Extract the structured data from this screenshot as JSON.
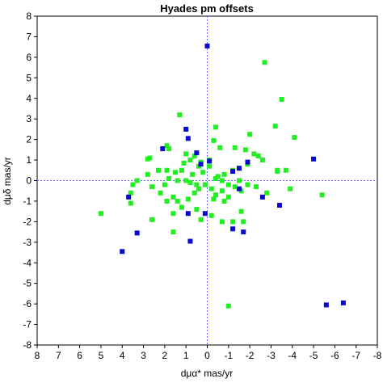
{
  "chart_data": {
    "type": "scatter",
    "title": "Hyades pm offsets",
    "xlabel": "dμα* mas/yr",
    "ylabel": "dμδ mas/yr",
    "xlim": [
      8,
      -8
    ],
    "ylim": [
      -8,
      8
    ],
    "x_reversed": true,
    "grid": false,
    "zero_lines": true,
    "x_ticks": [
      8,
      7,
      6,
      5,
      4,
      3,
      2,
      1,
      0,
      -1,
      -2,
      -3,
      -4,
      -5,
      -6,
      -7,
      -8
    ],
    "y_ticks": [
      8,
      7,
      6,
      5,
      4,
      3,
      2,
      1,
      0,
      -1,
      -2,
      -3,
      -4,
      -5,
      -6,
      -7,
      -8
    ],
    "colors": {
      "green": "#22ee22",
      "blue": "#0a0acc",
      "zero_line": "#6666ff"
    },
    "series": [
      {
        "color": "green",
        "points": [
          [
            -2.7,
            5.75
          ],
          [
            -3.5,
            3.95
          ],
          [
            1.3,
            3.2
          ],
          [
            -0.4,
            2.6
          ],
          [
            -3.2,
            2.65
          ],
          [
            -2.0,
            2.25
          ],
          [
            1.9,
            1.7
          ],
          [
            1.8,
            1.55
          ],
          [
            2.7,
            1.1
          ],
          [
            2.8,
            1.05
          ],
          [
            1.0,
            1.3
          ],
          [
            0.6,
            1.2
          ],
          [
            0.8,
            1.0
          ],
          [
            1.1,
            0.85
          ],
          [
            -0.3,
            1.95
          ],
          [
            -0.1,
            1.0
          ],
          [
            -0.6,
            1.6
          ],
          [
            -1.3,
            1.6
          ],
          [
            -1.8,
            1.5
          ],
          [
            -2.2,
            1.3
          ],
          [
            -2.4,
            1.2
          ],
          [
            -2.6,
            1.0
          ],
          [
            -3.3,
            0.45
          ],
          [
            -3.7,
            0.5
          ],
          [
            -4.1,
            2.1
          ],
          [
            -1.5,
            0.6
          ],
          [
            -1.2,
            0.5
          ],
          [
            -0.8,
            0.3
          ],
          [
            -0.5,
            0.2
          ],
          [
            0.2,
            0.4
          ],
          [
            0.4,
            0.7
          ],
          [
            0.7,
            0.3
          ],
          [
            1.2,
            0.5
          ],
          [
            1.5,
            0.4
          ],
          [
            1.9,
            0.5
          ],
          [
            2.3,
            0.5
          ],
          [
            2.8,
            0.3
          ],
          [
            3.3,
            0.0
          ],
          [
            3.5,
            -0.2
          ],
          [
            3.6,
            -0.6
          ],
          [
            2.6,
            -0.3
          ],
          [
            2.2,
            -0.6
          ],
          [
            1.9,
            -1.0
          ],
          [
            1.6,
            -0.8
          ],
          [
            1.4,
            -1.0
          ],
          [
            1.2,
            -1.3
          ],
          [
            0.9,
            -0.9
          ],
          [
            0.6,
            -0.6
          ],
          [
            0.4,
            -0.4
          ],
          [
            0.1,
            -0.2
          ],
          [
            -0.2,
            -0.4
          ],
          [
            -0.4,
            -0.7
          ],
          [
            -0.7,
            -0.5
          ],
          [
            -1.0,
            -0.8
          ],
          [
            -1.3,
            -0.3
          ],
          [
            -1.6,
            -0.5
          ],
          [
            -1.9,
            -0.2
          ],
          [
            -2.3,
            -0.3
          ],
          [
            -2.8,
            -0.6
          ],
          [
            -3.9,
            -0.4
          ],
          [
            -5.4,
            -0.7
          ],
          [
            5.0,
            -1.6
          ],
          [
            3.6,
            -1.1
          ],
          [
            2.6,
            -1.9
          ],
          [
            1.6,
            -1.6
          ],
          [
            1.6,
            -2.5
          ],
          [
            0.5,
            -1.4
          ],
          [
            0.3,
            -1.9
          ],
          [
            -0.2,
            -1.7
          ],
          [
            -0.7,
            -2.0
          ],
          [
            -1.2,
            -2.0
          ],
          [
            -1.6,
            -1.5
          ],
          [
            -1.7,
            -2.0
          ],
          [
            -0.3,
            -0.9
          ],
          [
            -0.8,
            -1.0
          ],
          [
            -1.5,
            0.0
          ],
          [
            1.0,
            0.0
          ],
          [
            0.5,
            -0.2
          ],
          [
            -0.1,
            0.7
          ],
          [
            -0.4,
            0.1
          ],
          [
            2.0,
            -0.2
          ],
          [
            1.8,
            0.1
          ],
          [
            1.4,
            0.0
          ],
          [
            0.8,
            -0.1
          ],
          [
            0.3,
            0.9
          ],
          [
            -0.7,
            0.0
          ],
          [
            -1.0,
            -0.2
          ],
          [
            -1.9,
            0.8
          ],
          [
            -3.3,
            0.5
          ],
          [
            -1.0,
            -6.1
          ]
        ]
      },
      {
        "color": "blue",
        "points": [
          [
            0.0,
            6.55
          ],
          [
            2.1,
            1.55
          ],
          [
            1.0,
            2.5
          ],
          [
            0.9,
            2.05
          ],
          [
            0.5,
            1.35
          ],
          [
            0.3,
            0.8
          ],
          [
            -0.1,
            0.95
          ],
          [
            -1.2,
            0.45
          ],
          [
            -1.5,
            0.6
          ],
          [
            -1.9,
            0.9
          ],
          [
            -5.0,
            1.05
          ],
          [
            3.7,
            -0.8
          ],
          [
            -2.6,
            -0.8
          ],
          [
            -3.4,
            -1.2
          ],
          [
            0.9,
            -1.6
          ],
          [
            0.1,
            -1.6
          ],
          [
            3.3,
            -2.55
          ],
          [
            4.0,
            -3.45
          ],
          [
            0.8,
            -2.95
          ],
          [
            -1.2,
            -2.35
          ],
          [
            -1.7,
            -2.5
          ],
          [
            -5.6,
            -6.05
          ],
          [
            -6.4,
            -5.95
          ],
          [
            -1.5,
            -0.4
          ]
        ]
      }
    ]
  }
}
